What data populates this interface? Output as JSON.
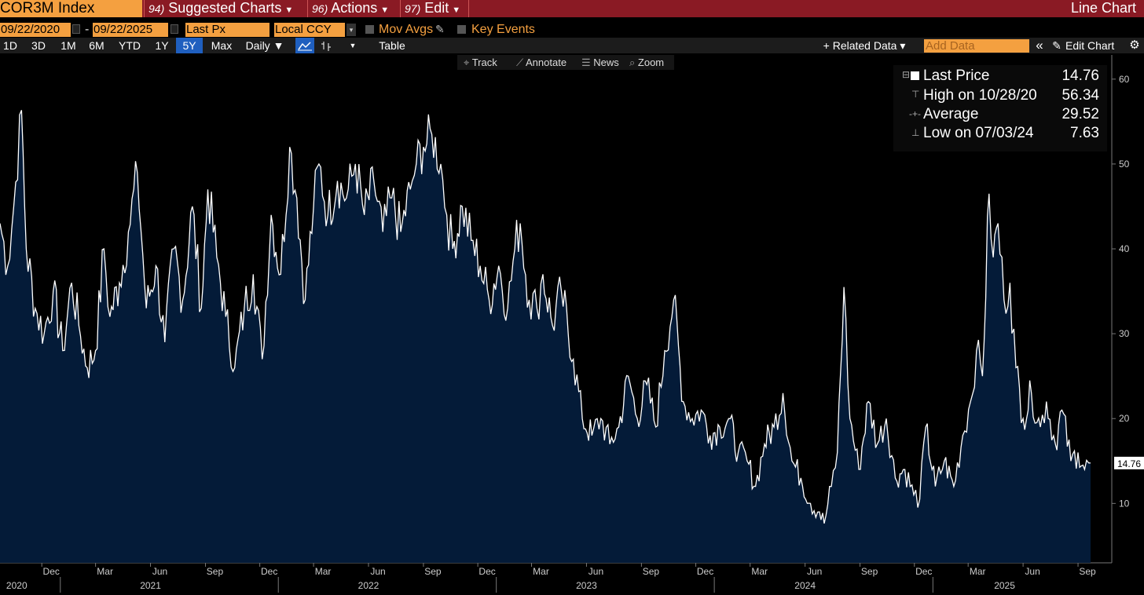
{
  "header": {
    "ticker": "COR3M Index",
    "menus": [
      {
        "num": "94)",
        "label": "Suggested Charts"
      },
      {
        "num": "96)",
        "label": "Actions"
      },
      {
        "num": "97)",
        "label": "Edit"
      }
    ],
    "chart_type": "Line Chart"
  },
  "controls": {
    "start_date": "09/22/2020",
    "date_sep": "-",
    "end_date": "09/22/2025",
    "field": "Last Px",
    "currency": "Local CCY",
    "mov_avgs": "Mov Avgs",
    "key_events": "Key Events"
  },
  "toolbar": {
    "ranges": [
      "1D",
      "3D",
      "1M",
      "6M",
      "YTD",
      "1Y",
      "5Y",
      "Max"
    ],
    "selected_range": "5Y",
    "frequency": "Daily ▼",
    "table": "Table",
    "related_data": "+ Related Data ▾",
    "add_data_placeholder": "Add Data",
    "collapse": "«",
    "edit_chart": "Edit Chart"
  },
  "subtools": {
    "track": "Track",
    "annotate": "Annotate",
    "news": "News",
    "zoom": "Zoom"
  },
  "legend": {
    "last_price_label": "Last Price",
    "last_price_value": "14.76",
    "high_label": "High on 10/28/20",
    "high_value": "56.34",
    "average_label": "Average",
    "average_value": "29.52",
    "low_label": "Low on 07/03/24",
    "low_value": "7.63"
  },
  "colors": {
    "accent": "#f4a040",
    "header": "#8a1a24",
    "area_fill": "#041b38",
    "line": "#ffffff",
    "selected": "#1f5fbf"
  },
  "chart_data": {
    "type": "area",
    "title": "",
    "xlabel": "",
    "ylabel": "",
    "x_start": "2020-09-22",
    "x_end": "2025-09-22",
    "ylim": [
      3,
      61
    ],
    "y_ticks": [
      10,
      20,
      30,
      40,
      50,
      60
    ],
    "last_value_label": "14.76",
    "x_month_ticks": [
      "Dec",
      "Mar",
      "Jun",
      "Sep",
      "Dec",
      "Mar",
      "Jun",
      "Sep",
      "Dec",
      "Mar",
      "Jun",
      "Sep",
      "Dec",
      "Mar",
      "Jun",
      "Sep",
      "Dec",
      "Mar",
      "Jun",
      "Sep"
    ],
    "x_year_labels": [
      "2020",
      "2021",
      "2022",
      "2023",
      "2024",
      "2025"
    ],
    "series": [
      {
        "values": [
          [
            "2020-09-22",
            43
          ],
          [
            "2020-10-05",
            38
          ],
          [
            "2020-10-15",
            45
          ],
          [
            "2020-10-28",
            56.34
          ],
          [
            "2020-11-05",
            40
          ],
          [
            "2020-11-20",
            33
          ],
          [
            "2020-12-05",
            30
          ],
          [
            "2020-12-20",
            35
          ],
          [
            "2021-01-05",
            28
          ],
          [
            "2021-01-20",
            36
          ],
          [
            "2021-02-01",
            31
          ],
          [
            "2021-02-15",
            26
          ],
          [
            "2021-03-01",
            28
          ],
          [
            "2021-03-15",
            40
          ],
          [
            "2021-03-25",
            32
          ],
          [
            "2021-04-10",
            36
          ],
          [
            "2021-04-25",
            42
          ],
          [
            "2021-05-10",
            49
          ],
          [
            "2021-05-25",
            33
          ],
          [
            "2021-06-10",
            38
          ],
          [
            "2021-06-25",
            29
          ],
          [
            "2021-07-10",
            40
          ],
          [
            "2021-07-25",
            34
          ],
          [
            "2021-08-10",
            45
          ],
          [
            "2021-08-25",
            33
          ],
          [
            "2021-09-05",
            47
          ],
          [
            "2021-09-20",
            39
          ],
          [
            "2021-10-05",
            32
          ],
          [
            "2021-10-20",
            26
          ],
          [
            "2021-11-05",
            33
          ],
          [
            "2021-11-20",
            37
          ],
          [
            "2021-12-05",
            27
          ],
          [
            "2021-12-20",
            44
          ],
          [
            "2022-01-05",
            37
          ],
          [
            "2022-01-20",
            52
          ],
          [
            "2022-02-01",
            46
          ],
          [
            "2022-02-15",
            34
          ],
          [
            "2022-03-01",
            45
          ],
          [
            "2022-03-10",
            50
          ],
          [
            "2022-03-25",
            44
          ],
          [
            "2022-04-10",
            48
          ],
          [
            "2022-04-25",
            46
          ],
          [
            "2022-05-10",
            50
          ],
          [
            "2022-05-25",
            44
          ],
          [
            "2022-06-10",
            48
          ],
          [
            "2022-06-25",
            42
          ],
          [
            "2022-07-10",
            46
          ],
          [
            "2022-07-25",
            42
          ],
          [
            "2022-08-10",
            47
          ],
          [
            "2022-08-20",
            50
          ],
          [
            "2022-09-01",
            52
          ],
          [
            "2022-09-15",
            53.5
          ],
          [
            "2022-09-30",
            50
          ],
          [
            "2022-10-10",
            44
          ],
          [
            "2022-10-20",
            40
          ],
          [
            "2022-11-05",
            45
          ],
          [
            "2022-11-20",
            41
          ],
          [
            "2022-12-05",
            38
          ],
          [
            "2022-12-20",
            34
          ],
          [
            "2023-01-05",
            38
          ],
          [
            "2023-01-20",
            33
          ],
          [
            "2023-02-01",
            40
          ],
          [
            "2023-02-10",
            43
          ],
          [
            "2023-02-25",
            34
          ],
          [
            "2023-03-10",
            33
          ],
          [
            "2023-03-20",
            37
          ],
          [
            "2023-04-05",
            31
          ],
          [
            "2023-04-20",
            35
          ],
          [
            "2023-05-10",
            27
          ],
          [
            "2023-05-25",
            20
          ],
          [
            "2023-06-10",
            18
          ],
          [
            "2023-06-25",
            20
          ],
          [
            "2023-07-10",
            17
          ],
          [
            "2023-07-25",
            19
          ],
          [
            "2023-08-10",
            25
          ],
          [
            "2023-08-25",
            20
          ],
          [
            "2023-09-10",
            24
          ],
          [
            "2023-09-25",
            19
          ],
          [
            "2023-10-10",
            28
          ],
          [
            "2023-10-25",
            34
          ],
          [
            "2023-11-10",
            22
          ],
          [
            "2023-11-25",
            20
          ],
          [
            "2023-12-10",
            21
          ],
          [
            "2023-12-25",
            18
          ],
          [
            "2024-01-10",
            19
          ],
          [
            "2024-01-25",
            20
          ],
          [
            "2024-02-10",
            16
          ],
          [
            "2024-02-25",
            15
          ],
          [
            "2024-03-10",
            12
          ],
          [
            "2024-03-25",
            17
          ],
          [
            "2024-04-10",
            19
          ],
          [
            "2024-04-25",
            23
          ],
          [
            "2024-05-10",
            15
          ],
          [
            "2024-05-25",
            13
          ],
          [
            "2024-06-10",
            10
          ],
          [
            "2024-06-25",
            9
          ],
          [
            "2024-07-03",
            7.63
          ],
          [
            "2024-07-15",
            12
          ],
          [
            "2024-07-25",
            16
          ],
          [
            "2024-08-05",
            35.5
          ],
          [
            "2024-08-15",
            20
          ],
          [
            "2024-08-30",
            14
          ],
          [
            "2024-09-15",
            22
          ],
          [
            "2024-09-30",
            17
          ],
          [
            "2024-10-15",
            20
          ],
          [
            "2024-10-30",
            13
          ],
          [
            "2024-11-15",
            14
          ],
          [
            "2024-11-30",
            11
          ],
          [
            "2024-12-10",
            10.5
          ],
          [
            "2024-12-20",
            19
          ],
          [
            "2025-01-05",
            12
          ],
          [
            "2025-01-20",
            15
          ],
          [
            "2025-02-05",
            12
          ],
          [
            "2025-02-20",
            18
          ],
          [
            "2025-03-05",
            22
          ],
          [
            "2025-03-15",
            28
          ],
          [
            "2025-03-25",
            25
          ],
          [
            "2025-04-05",
            46.5
          ],
          [
            "2025-04-12",
            39
          ],
          [
            "2025-04-20",
            43
          ],
          [
            "2025-04-30",
            34
          ],
          [
            "2025-05-10",
            36
          ],
          [
            "2025-05-20",
            26
          ],
          [
            "2025-06-01",
            20
          ],
          [
            "2025-06-15",
            23
          ],
          [
            "2025-06-30",
            19
          ],
          [
            "2025-07-10",
            22
          ],
          [
            "2025-07-25",
            17
          ],
          [
            "2025-08-05",
            21
          ],
          [
            "2025-08-20",
            15
          ],
          [
            "2025-09-01",
            16
          ],
          [
            "2025-09-12",
            14
          ],
          [
            "2025-09-22",
            14.76
          ]
        ]
      }
    ]
  }
}
